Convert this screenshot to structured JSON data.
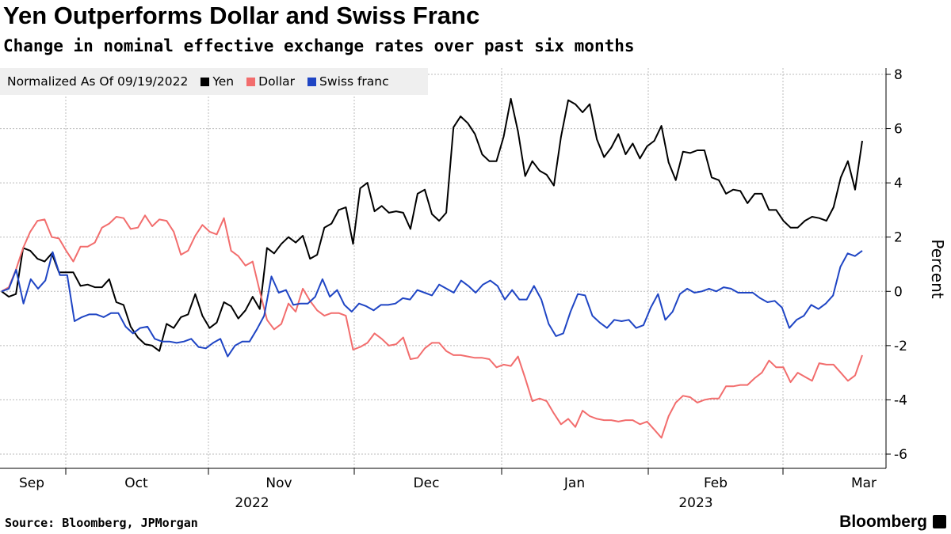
{
  "header": {
    "title": "Yen Outperforms Dollar and Swiss Franc",
    "subtitle": "Change in nominal effective exchange rates over past six months"
  },
  "footer": {
    "source": "Source: Bloomberg, JPMorgan",
    "brand": "Bloomberg"
  },
  "chart_data": {
    "type": "line",
    "title": "Yen Outperforms Dollar and Swiss Franc",
    "subtitle": "Change in nominal effective exchange rates over past six months",
    "legend_title": "Normalized As Of 09/19/2022",
    "legend_placement": "top-left",
    "xlabel": "",
    "ylabel": "Percent",
    "ylim": [
      -6,
      8
    ],
    "yticks": [
      "8",
      "6",
      "4",
      "2",
      "0",
      "-2",
      "-4",
      "-6"
    ],
    "yticks_values": [
      8,
      6,
      4,
      2,
      0,
      -2,
      -4,
      -6
    ],
    "x_range": [
      "2022-09-19",
      "2023-03-03"
    ],
    "xticks": [
      "Sep",
      "Oct",
      "Nov",
      "Dec",
      "Jan",
      "Feb",
      "Mar"
    ],
    "year_labels": [
      "2022",
      "2023"
    ],
    "grid": true,
    "series": [
      {
        "name": "Yen",
        "color": "#000000",
        "values": [
          0,
          -0.2,
          -0.1,
          1.6,
          1.5,
          1.2,
          1.1,
          1.4,
          0.7,
          0.7,
          0.7,
          0.2,
          0.25,
          0.15,
          0.15,
          0.45,
          -0.4,
          -0.5,
          -1.3,
          -1.7,
          -1.95,
          -2.0,
          -2.2,
          -1.2,
          -1.35,
          -0.95,
          -0.85,
          -0.1,
          -0.9,
          -1.35,
          -1.15,
          -0.4,
          -0.55,
          -1.0,
          -0.7,
          -0.2,
          -0.65,
          1.6,
          1.4,
          1.75,
          2.0,
          1.8,
          2.05,
          1.2,
          1.35,
          2.35,
          2.5,
          3.0,
          3.1,
          1.75,
          3.8,
          4.0,
          2.95,
          3.15,
          2.9,
          2.95,
          2.9,
          2.3,
          3.6,
          3.75,
          2.85,
          2.6,
          2.9,
          6.05,
          6.45,
          6.2,
          5.8,
          5.05,
          4.8,
          4.8,
          5.7,
          7.1,
          5.9,
          4.25,
          4.8,
          4.45,
          4.3,
          3.9,
          5.7,
          7.05,
          6.9,
          6.6,
          6.9,
          5.6,
          4.95,
          5.3,
          5.8,
          5.05,
          5.45,
          4.9,
          5.35,
          5.55,
          6.1,
          4.75,
          4.1,
          5.15,
          5.1,
          5.2,
          5.2,
          4.2,
          4.1,
          3.6,
          3.75,
          3.7,
          3.25,
          3.6,
          3.6,
          3.0,
          3.0,
          2.6,
          2.35,
          2.35,
          2.6,
          2.75,
          2.7,
          2.6,
          3.1,
          4.2,
          4.8,
          3.75,
          5.55
        ]
      },
      {
        "name": "Dollar",
        "color": "#f26d6d",
        "values": [
          0,
          0.15,
          0.8,
          1.6,
          2.2,
          2.6,
          2.65,
          2.0,
          1.95,
          1.5,
          1.1,
          1.65,
          1.65,
          1.8,
          2.35,
          2.5,
          2.75,
          2.7,
          2.3,
          2.35,
          2.8,
          2.4,
          2.65,
          2.6,
          2.2,
          1.35,
          1.5,
          2.05,
          2.45,
          2.2,
          2.1,
          2.7,
          1.5,
          1.3,
          0.95,
          1.1,
          0.0,
          -1.05,
          -1.4,
          -1.2,
          -0.45,
          -0.75,
          0.1,
          -0.35,
          -0.7,
          -0.9,
          -0.8,
          -0.8,
          -0.9,
          -2.15,
          -2.05,
          -1.9,
          -1.55,
          -1.75,
          -2.0,
          -1.95,
          -1.7,
          -2.5,
          -2.45,
          -2.1,
          -1.9,
          -1.9,
          -2.2,
          -2.35,
          -2.35,
          -2.4,
          -2.45,
          -2.45,
          -2.5,
          -2.8,
          -2.7,
          -2.75,
          -2.4,
          -3.2,
          -4.05,
          -3.95,
          -4.05,
          -4.5,
          -4.9,
          -4.7,
          -5.0,
          -4.4,
          -4.6,
          -4.7,
          -4.75,
          -4.75,
          -4.8,
          -4.75,
          -4.75,
          -4.9,
          -4.8,
          -5.1,
          -5.4,
          -4.6,
          -4.1,
          -3.85,
          -3.9,
          -4.1,
          -4.0,
          -3.95,
          -3.95,
          -3.5,
          -3.5,
          -3.45,
          -3.45,
          -3.2,
          -3.0,
          -2.55,
          -2.8,
          -2.8,
          -3.35,
          -3.0,
          -3.15,
          -3.3,
          -2.65,
          -2.7,
          -2.7,
          -3.0,
          -3.3,
          -3.1,
          -2.35
        ]
      },
      {
        "name": "Swiss franc",
        "color": "#1f45c4",
        "values": [
          0,
          0.1,
          0.8,
          -0.45,
          0.45,
          0.1,
          0.4,
          1.45,
          0.6,
          0.6,
          -1.1,
          -0.95,
          -0.85,
          -0.85,
          -0.95,
          -0.8,
          -0.8,
          -1.3,
          -1.55,
          -1.35,
          -1.3,
          -1.75,
          -1.85,
          -1.85,
          -1.9,
          -1.85,
          -1.75,
          -2.05,
          -2.1,
          -1.9,
          -1.75,
          -2.4,
          -2.0,
          -1.85,
          -1.85,
          -1.4,
          -0.9,
          0.55,
          -0.05,
          0.05,
          -0.5,
          -0.45,
          -0.45,
          -0.2,
          0.45,
          -0.2,
          0.05,
          -0.5,
          -0.75,
          -0.45,
          -0.55,
          -0.7,
          -0.5,
          -0.5,
          -0.45,
          -0.25,
          -0.3,
          0.05,
          -0.05,
          -0.15,
          0.25,
          0.1,
          -0.05,
          0.4,
          0.2,
          -0.05,
          0.25,
          0.4,
          0.2,
          -0.3,
          0.05,
          -0.3,
          -0.3,
          0.2,
          -0.3,
          -1.2,
          -1.65,
          -1.55,
          -0.75,
          -0.1,
          -0.15,
          -0.9,
          -1.15,
          -1.35,
          -1.05,
          -1.1,
          -1.05,
          -1.35,
          -1.25,
          -0.6,
          -0.1,
          -1.05,
          -0.75,
          -0.1,
          0.1,
          -0.05,
          0.0,
          0.1,
          0.0,
          0.15,
          0.1,
          -0.05,
          -0.05,
          -0.05,
          -0.25,
          -0.4,
          -0.35,
          -0.6,
          -1.35,
          -1.05,
          -0.9,
          -0.5,
          -0.65,
          -0.45,
          -0.15,
          0.9,
          1.4,
          1.3,
          1.5
        ]
      }
    ]
  }
}
